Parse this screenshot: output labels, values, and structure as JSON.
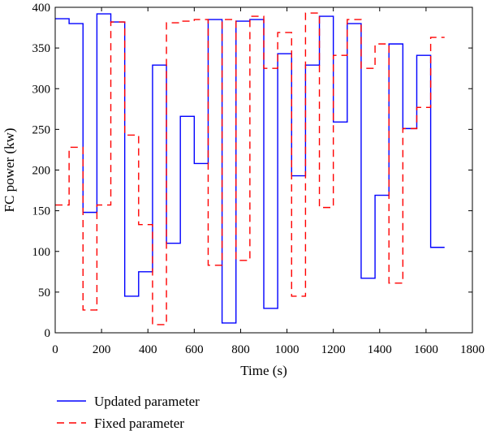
{
  "chart_data": {
    "type": "line",
    "title": "",
    "xlabel": "Time (s)",
    "ylabel": "FC power (kw)",
    "xlim": [
      0,
      1800
    ],
    "ylim": [
      0,
      400
    ],
    "xticks": [
      0,
      200,
      400,
      600,
      800,
      1000,
      1200,
      1400,
      1600,
      1800
    ],
    "yticks": [
      0,
      50,
      100,
      150,
      200,
      250,
      300,
      350,
      400
    ],
    "grid": false,
    "legend_position": "bottom",
    "series": [
      {
        "name": "Updated parameter",
        "color": "#0000ff",
        "style": "solid",
        "step": true,
        "x": [
          0,
          60,
          120,
          180,
          240,
          300,
          360,
          420,
          480,
          540,
          600,
          660,
          720,
          780,
          840,
          900,
          960,
          1020,
          1080,
          1140,
          1200,
          1260,
          1320,
          1380,
          1440,
          1500,
          1560,
          1620,
          1680
        ],
        "y": [
          386,
          380,
          148,
          392,
          382,
          45,
          75,
          329,
          110,
          266,
          208,
          385,
          12,
          383,
          385,
          30,
          343,
          193,
          329,
          389,
          259,
          380,
          67,
          169,
          355,
          251,
          341,
          105,
          105
        ]
      },
      {
        "name": "Fixed parameter",
        "color": "#ff0000",
        "style": "dashed",
        "step": true,
        "x": [
          0,
          60,
          120,
          180,
          240,
          300,
          360,
          420,
          480,
          540,
          600,
          660,
          720,
          780,
          840,
          900,
          960,
          1020,
          1080,
          1140,
          1200,
          1260,
          1320,
          1380,
          1440,
          1500,
          1560,
          1620,
          1680
        ],
        "y": [
          157,
          228,
          28,
          157,
          382,
          243,
          133,
          10,
          381,
          383,
          385,
          83,
          385,
          89,
          389,
          325,
          369,
          45,
          393,
          154,
          341,
          385,
          325,
          355,
          61,
          251,
          277,
          363,
          363
        ]
      }
    ]
  }
}
